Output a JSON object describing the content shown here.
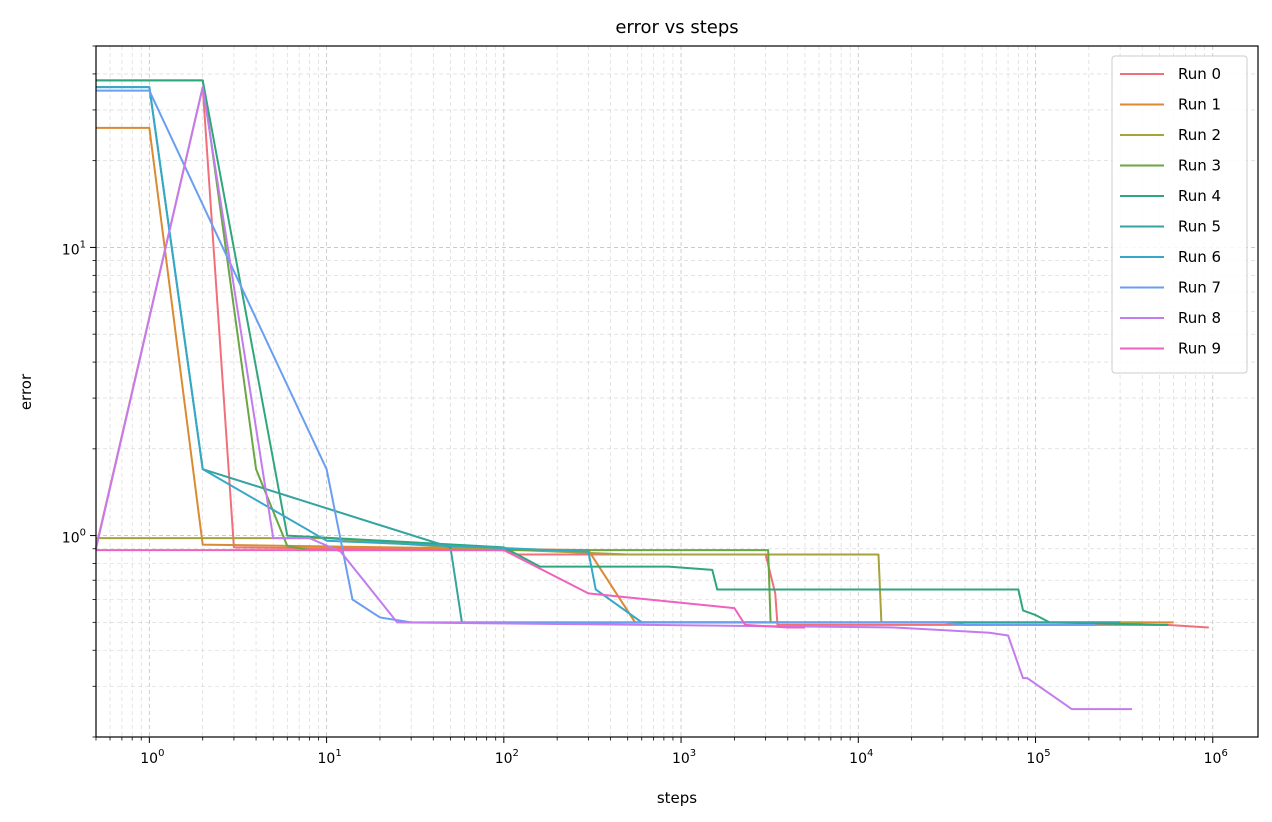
{
  "chart_data": {
    "type": "line",
    "title": "error vs steps",
    "xlabel": "steps",
    "ylabel": "error",
    "xscale": "log",
    "yscale": "log",
    "xlim": [
      0.5,
      1800000
    ],
    "ylim": [
      0.2,
      50
    ],
    "grid": "both (major and minor, dashed)",
    "legend_position": "top-right",
    "x_tick_labels": [
      {
        "base": "10",
        "exp": "0"
      },
      {
        "base": "10",
        "exp": "1"
      },
      {
        "base": "10",
        "exp": "2"
      },
      {
        "base": "10",
        "exp": "3"
      },
      {
        "base": "10",
        "exp": "4"
      },
      {
        "base": "10",
        "exp": "5"
      },
      {
        "base": "10",
        "exp": "6"
      }
    ],
    "y_tick_labels": [
      {
        "base": "10",
        "exp": "0"
      },
      {
        "base": "10",
        "exp": "1"
      }
    ],
    "series": [
      {
        "name": "Run 0",
        "color": "#f0707a",
        "x": [
          0.5,
          2,
          3,
          100,
          120,
          3000,
          3400,
          3500,
          500000,
          550000,
          950000
        ],
        "y": [
          0.91,
          36,
          0.91,
          0.89,
          0.86,
          0.86,
          0.63,
          0.49,
          0.49,
          0.49,
          0.48
        ]
      },
      {
        "name": "Run 1",
        "color": "#da8a32",
        "x": [
          0.5,
          1,
          2,
          300,
          550,
          600000
        ],
        "y": [
          26,
          26,
          0.93,
          0.89,
          0.5,
          0.5
        ]
      },
      {
        "name": "Run 2",
        "color": "#a7a23b",
        "x": [
          0.5,
          10,
          50,
          500,
          13000,
          13500,
          60000,
          400000
        ],
        "y": [
          0.98,
          0.98,
          0.91,
          0.86,
          0.86,
          0.5,
          0.5,
          0.5
        ]
      },
      {
        "name": "Run 3",
        "color": "#6aa641",
        "x": [
          0.5,
          2,
          4,
          6,
          8,
          3100,
          3200,
          4000
        ],
        "y": [
          38,
          38,
          1.7,
          0.92,
          0.89,
          0.89,
          0.5,
          0.5
        ]
      },
      {
        "name": "Run 4",
        "color": "#30a67d",
        "x": [
          0.5,
          2,
          6,
          100,
          160,
          850,
          1500,
          1600,
          80000,
          85000,
          100000,
          120000,
          500000,
          560000
        ],
        "y": [
          38,
          38,
          1,
          0.91,
          0.78,
          0.78,
          0.76,
          0.65,
          0.65,
          0.55,
          0.53,
          0.5,
          0.49,
          0.49
        ]
      },
      {
        "name": "Run 5",
        "color": "#35a39f",
        "x": [
          0.5,
          1,
          2,
          50,
          58,
          300000
        ],
        "y": [
          36,
          36,
          1.7,
          0.91,
          0.5,
          0.5
        ]
      },
      {
        "name": "Run 6",
        "color": "#36a8c6",
        "x": [
          0.5,
          1,
          2,
          10,
          300,
          330,
          600,
          3000
        ],
        "y": [
          36,
          36,
          1.7,
          0.96,
          0.88,
          0.65,
          0.5,
          0.5
        ]
      },
      {
        "name": "Run 7",
        "color": "#6a9ef0",
        "x": [
          0.5,
          1,
          10,
          14,
          20,
          30,
          30000,
          40000,
          220000
        ],
        "y": [
          35,
          35,
          1.7,
          0.6,
          0.52,
          0.5,
          0.5,
          0.49,
          0.49
        ]
      },
      {
        "name": "Run 8",
        "color": "#c27ced",
        "x": [
          0.5,
          2,
          5,
          8,
          12,
          25,
          16000,
          30000,
          55000,
          70000,
          85000,
          90000,
          160000,
          350000
        ],
        "y": [
          0.9,
          36,
          0.98,
          0.98,
          0.88,
          0.5,
          0.48,
          0.47,
          0.46,
          0.45,
          0.32,
          0.32,
          0.25,
          0.25
        ]
      },
      {
        "name": "Run 9",
        "color": "#ee62bd",
        "x": [
          0.5,
          100,
          300,
          2000,
          2300,
          4000,
          5000
        ],
        "y": [
          0.89,
          0.89,
          0.63,
          0.56,
          0.49,
          0.48,
          0.48
        ]
      }
    ]
  }
}
